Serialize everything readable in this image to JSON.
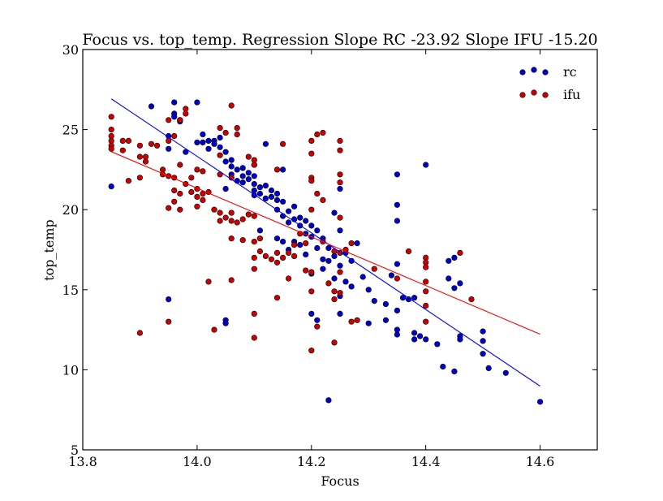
{
  "chart_data": {
    "type": "scatter",
    "title": "Focus vs. top_temp. Regression Slope RC -23.92 Slope IFU -15.20",
    "xlabel": "Focus",
    "ylabel": "top_temp",
    "xlim": [
      13.8,
      14.7
    ],
    "ylim": [
      5,
      30
    ],
    "xticks": [
      13.8,
      14.0,
      14.2,
      14.4,
      14.6
    ],
    "xtick_labels": [
      "13.8",
      "14.0",
      "14.2",
      "14.4",
      "14.6"
    ],
    "yticks": [
      5,
      10,
      15,
      20,
      25,
      30
    ],
    "ytick_labels": [
      "5",
      "10",
      "15",
      "20",
      "25",
      "30"
    ],
    "grid": false,
    "legend_position": "top-right",
    "series": [
      {
        "name": "rc",
        "color": "#0000cc",
        "points": [
          [
            13.85,
            21.45
          ],
          [
            13.92,
            26.45
          ],
          [
            13.95,
            24.6
          ],
          [
            13.95,
            23.8
          ],
          [
            13.95,
            14.4
          ],
          [
            13.96,
            26.7
          ],
          [
            13.96,
            26.0
          ],
          [
            13.96,
            25.8
          ],
          [
            13.97,
            25.6
          ],
          [
            13.97,
            25.5
          ],
          [
            13.98,
            23.6
          ],
          [
            14.0,
            26.7
          ],
          [
            14.0,
            24.2
          ],
          [
            14.01,
            24.7
          ],
          [
            14.01,
            24.2
          ],
          [
            14.02,
            24.3
          ],
          [
            14.02,
            23.8
          ],
          [
            14.03,
            24.3
          ],
          [
            14.03,
            24.1
          ],
          [
            14.04,
            24.5
          ],
          [
            14.04,
            23.9
          ],
          [
            14.05,
            23.6
          ],
          [
            14.05,
            23.0
          ],
          [
            14.05,
            21.3
          ],
          [
            14.05,
            13.1
          ],
          [
            14.05,
            12.9
          ],
          [
            14.06,
            23.1
          ],
          [
            14.06,
            22.7
          ],
          [
            14.06,
            22.2
          ],
          [
            14.07,
            22.5
          ],
          [
            14.07,
            21.8
          ],
          [
            14.08,
            22.6
          ],
          [
            14.08,
            22.1
          ],
          [
            14.08,
            21.7
          ],
          [
            14.09,
            22.3
          ],
          [
            14.09,
            21.9
          ],
          [
            14.1,
            22.8
          ],
          [
            14.1,
            22.1
          ],
          [
            14.1,
            21.6
          ],
          [
            14.1,
            21.2
          ],
          [
            14.1,
            20.9
          ],
          [
            14.11,
            21.4
          ],
          [
            14.11,
            21.0
          ],
          [
            14.11,
            18.7
          ],
          [
            14.12,
            24.1
          ],
          [
            14.12,
            21.5
          ],
          [
            14.12,
            20.7
          ],
          [
            14.13,
            21.2
          ],
          [
            14.13,
            20.8
          ],
          [
            14.14,
            21.0
          ],
          [
            14.14,
            20.6
          ],
          [
            14.14,
            20.0
          ],
          [
            14.14,
            18.2
          ],
          [
            14.15,
            22.5
          ],
          [
            14.15,
            20.5
          ],
          [
            14.15,
            19.6
          ],
          [
            14.15,
            18.0
          ],
          [
            14.16,
            19.9
          ],
          [
            14.16,
            19.2
          ],
          [
            14.16,
            17.5
          ],
          [
            14.17,
            20.2
          ],
          [
            14.17,
            19.4
          ],
          [
            14.17,
            18.0
          ],
          [
            14.18,
            19.5
          ],
          [
            14.18,
            19.0
          ],
          [
            14.18,
            17.8
          ],
          [
            14.19,
            19.3
          ],
          [
            14.19,
            18.5
          ],
          [
            14.19,
            17.2
          ],
          [
            14.2,
            19.0
          ],
          [
            14.2,
            18.3
          ],
          [
            14.2,
            16.0
          ],
          [
            14.2,
            13.5
          ],
          [
            14.21,
            18.7
          ],
          [
            14.21,
            17.6
          ],
          [
            14.21,
            13.1
          ],
          [
            14.22,
            18.2
          ],
          [
            14.22,
            16.9
          ],
          [
            14.22,
            16.3
          ],
          [
            14.23,
            17.6
          ],
          [
            14.23,
            16.8
          ],
          [
            14.23,
            8.1
          ],
          [
            14.24,
            19.8
          ],
          [
            14.24,
            17.1
          ],
          [
            14.24,
            15.7
          ],
          [
            14.25,
            18.7
          ],
          [
            14.25,
            16.5
          ],
          [
            14.25,
            14.6
          ],
          [
            14.25,
            13.5
          ],
          [
            14.25,
            21.3
          ],
          [
            14.26,
            17.3
          ],
          [
            14.26,
            15.5
          ],
          [
            14.27,
            16.8
          ],
          [
            14.27,
            15.2
          ],
          [
            14.28,
            17.9
          ],
          [
            14.29,
            15.8
          ],
          [
            14.3,
            15.0
          ],
          [
            14.3,
            12.9
          ],
          [
            14.31,
            14.3
          ],
          [
            14.33,
            14.1
          ],
          [
            14.33,
            13.1
          ],
          [
            14.34,
            15.9
          ],
          [
            14.35,
            22.2
          ],
          [
            14.35,
            20.3
          ],
          [
            14.35,
            19.3
          ],
          [
            14.35,
            16.6
          ],
          [
            14.35,
            13.7
          ],
          [
            14.35,
            12.5
          ],
          [
            14.35,
            12.2
          ],
          [
            14.36,
            14.5
          ],
          [
            14.37,
            14.4
          ],
          [
            14.38,
            14.5
          ],
          [
            14.38,
            12.3
          ],
          [
            14.38,
            11.9
          ],
          [
            14.39,
            12.1
          ],
          [
            14.4,
            22.8
          ],
          [
            14.4,
            11.9
          ],
          [
            14.42,
            11.6
          ],
          [
            14.43,
            10.2
          ],
          [
            14.44,
            15.7
          ],
          [
            14.44,
            16.8
          ],
          [
            14.45,
            17.0
          ],
          [
            14.45,
            15.1
          ],
          [
            14.45,
            9.9
          ],
          [
            14.46,
            15.4
          ],
          [
            14.46,
            12.1
          ],
          [
            14.46,
            11.9
          ],
          [
            14.5,
            12.4
          ],
          [
            14.5,
            11.8
          ],
          [
            14.5,
            11.0
          ],
          [
            14.51,
            10.1
          ],
          [
            14.54,
            9.8
          ],
          [
            14.6,
            8.0
          ]
        ]
      },
      {
        "name": "ifu",
        "color": "#cc0000",
        "points": [
          [
            13.85,
            25.8
          ],
          [
            13.85,
            25.0
          ],
          [
            13.85,
            24.6
          ],
          [
            13.85,
            24.3
          ],
          [
            13.85,
            24.0
          ],
          [
            13.85,
            23.8
          ],
          [
            13.87,
            24.3
          ],
          [
            13.87,
            23.7
          ],
          [
            13.88,
            24.3
          ],
          [
            13.88,
            21.8
          ],
          [
            13.9,
            24.0
          ],
          [
            13.9,
            23.3
          ],
          [
            13.9,
            22.0
          ],
          [
            13.9,
            12.3
          ],
          [
            13.91,
            23.3
          ],
          [
            13.91,
            23.0
          ],
          [
            13.92,
            24.1
          ],
          [
            13.93,
            24.0
          ],
          [
            13.94,
            22.5
          ],
          [
            13.94,
            22.2
          ],
          [
            13.95,
            25.6
          ],
          [
            13.95,
            24.3
          ],
          [
            13.95,
            22.1
          ],
          [
            13.95,
            20.1
          ],
          [
            13.95,
            13.0
          ],
          [
            13.96,
            24.6
          ],
          [
            13.96,
            22.0
          ],
          [
            13.96,
            21.2
          ],
          [
            13.96,
            20.5
          ],
          [
            13.97,
            25.6
          ],
          [
            13.97,
            22.8
          ],
          [
            13.97,
            21.0
          ],
          [
            13.97,
            20.0
          ],
          [
            13.98,
            26.3
          ],
          [
            13.98,
            26.0
          ],
          [
            13.98,
            21.6
          ],
          [
            13.99,
            22.0
          ],
          [
            13.99,
            21.1
          ],
          [
            14.0,
            22.5
          ],
          [
            14.0,
            21.3
          ],
          [
            14.0,
            20.8
          ],
          [
            14.0,
            20.2
          ],
          [
            14.01,
            22.4
          ],
          [
            14.01,
            21.0
          ],
          [
            14.01,
            20.6
          ],
          [
            14.02,
            21.1
          ],
          [
            14.02,
            15.5
          ],
          [
            14.03,
            20.0
          ],
          [
            14.03,
            12.5
          ],
          [
            14.04,
            25.1
          ],
          [
            14.04,
            23.4
          ],
          [
            14.04,
            22.2
          ],
          [
            14.04,
            19.8
          ],
          [
            14.04,
            19.3
          ],
          [
            14.05,
            24.8
          ],
          [
            14.05,
            19.5
          ],
          [
            14.06,
            26.5
          ],
          [
            14.06,
            22.0
          ],
          [
            14.06,
            19.8
          ],
          [
            14.06,
            19.3
          ],
          [
            14.06,
            18.2
          ],
          [
            14.06,
            15.6
          ],
          [
            14.07,
            25.1
          ],
          [
            14.07,
            24.7
          ],
          [
            14.07,
            19.2
          ],
          [
            14.08,
            19.4
          ],
          [
            14.08,
            18.1
          ],
          [
            14.09,
            23.3
          ],
          [
            14.09,
            19.7
          ],
          [
            14.1,
            23.1
          ],
          [
            14.1,
            22.8
          ],
          [
            14.1,
            19.6
          ],
          [
            14.1,
            18.0
          ],
          [
            14.1,
            17.0
          ],
          [
            14.1,
            16.3
          ],
          [
            14.1,
            13.5
          ],
          [
            14.1,
            12.0
          ],
          [
            14.11,
            18.2
          ],
          [
            14.11,
            17.4
          ],
          [
            14.12,
            17.1
          ],
          [
            14.13,
            16.9
          ],
          [
            14.14,
            22.5
          ],
          [
            14.14,
            17.3
          ],
          [
            14.14,
            16.7
          ],
          [
            14.14,
            14.5
          ],
          [
            14.15,
            24.1
          ],
          [
            14.15,
            17.0
          ],
          [
            14.16,
            17.3
          ],
          [
            14.16,
            15.7
          ],
          [
            14.17,
            17.8
          ],
          [
            14.17,
            17.1
          ],
          [
            14.18,
            18.5
          ],
          [
            14.19,
            17.9
          ],
          [
            14.19,
            16.2
          ],
          [
            14.2,
            24.3
          ],
          [
            14.2,
            23.5
          ],
          [
            14.2,
            22.0
          ],
          [
            14.2,
            21.8
          ],
          [
            14.2,
            20.0
          ],
          [
            14.2,
            16.1
          ],
          [
            14.2,
            14.9
          ],
          [
            14.2,
            11.2
          ],
          [
            14.21,
            24.7
          ],
          [
            14.21,
            21.0
          ],
          [
            14.21,
            12.7
          ],
          [
            14.22,
            24.8
          ],
          [
            14.22,
            20.6
          ],
          [
            14.22,
            18.0
          ],
          [
            14.23,
            15.4
          ],
          [
            14.24,
            17.4
          ],
          [
            14.24,
            14.9
          ],
          [
            14.24,
            14.4
          ],
          [
            14.24,
            11.7
          ],
          [
            14.25,
            24.3
          ],
          [
            14.25,
            23.7
          ],
          [
            14.25,
            22.2
          ],
          [
            14.25,
            21.7
          ],
          [
            14.25,
            19.5
          ],
          [
            14.25,
            17.3
          ],
          [
            14.25,
            16.1
          ],
          [
            14.25,
            14.8
          ],
          [
            14.26,
            17.5
          ],
          [
            14.27,
            17.9
          ],
          [
            14.27,
            13.0
          ],
          [
            14.28,
            13.1
          ],
          [
            14.31,
            16.3
          ],
          [
            14.35,
            15.7
          ],
          [
            14.37,
            17.4
          ],
          [
            14.4,
            17.0
          ],
          [
            14.4,
            16.7
          ],
          [
            14.4,
            16.4
          ],
          [
            14.4,
            15.5
          ],
          [
            14.4,
            14.9
          ],
          [
            14.4,
            14.0
          ],
          [
            14.4,
            13.0
          ],
          [
            14.46,
            17.3
          ],
          [
            14.48,
            14.4
          ]
        ]
      }
    ],
    "regression_lines": [
      {
        "name": "rc",
        "color": "#0000ff",
        "x": [
          13.85,
          14.6
        ],
        "y": [
          26.92,
          8.98
        ]
      },
      {
        "name": "ifu",
        "color": "#ff0000",
        "x": [
          13.85,
          14.6
        ],
        "y": [
          23.62,
          12.22
        ]
      }
    ]
  }
}
